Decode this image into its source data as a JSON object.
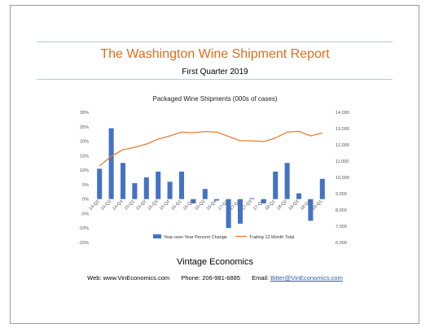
{
  "report": {
    "title": "The Washington Wine Shipment Report",
    "subtitle": "First Quarter 2019"
  },
  "footer": {
    "company": "Vintage Economics",
    "web_label": "Web:",
    "web_value": "www.VinEconomics.com",
    "phone_label": "Phone:",
    "phone_value": "206-981-6885",
    "email_label": "Email:",
    "email_value": "Bitter@VinEconomics.com"
  },
  "chart_data": {
    "type": "bar",
    "title": "Packaged Wine Shipments (000s of cases)",
    "categories": [
      "14-Q2",
      "14-Q3",
      "14-Q4",
      "15-Q1",
      "15-Q2",
      "15-Q3",
      "15-Q4",
      "16-Q1",
      "16-Q2",
      "16-Q3",
      "16-Q4",
      "17-Q1",
      "17-Q2",
      "17-Q3",
      "17-Q4",
      "18-Q1",
      "18-Q2",
      "18-Q3",
      "18-Q4",
      "19-Q1"
    ],
    "series": [
      {
        "name": "Year-over-Year Percent Change",
        "type": "bar",
        "axis": "left",
        "color": "#4472c4",
        "values": [
          10.5,
          24.5,
          12.5,
          5.5,
          7.5,
          9.5,
          6.0,
          9.5,
          -1.5,
          3.5,
          -0.5,
          -10.0,
          -8.5,
          0.3,
          -1.5,
          9.5,
          12.5,
          2.0,
          -7.5,
          7.0
        ]
      },
      {
        "name": "Trailing 12 Month Total",
        "type": "line",
        "axis": "right",
        "color": "#ed7d31",
        "values": [
          10700,
          11300,
          11700,
          11850,
          12050,
          12350,
          12550,
          12780,
          12750,
          12820,
          12780,
          12520,
          12250,
          12250,
          12200,
          12420,
          12780,
          12830,
          12550,
          12730
        ]
      }
    ],
    "y_left": {
      "min": -15,
      "max": 30,
      "step": 5,
      "format": "percent",
      "ticks": [
        "-15%",
        "-10%",
        "-5%",
        "0%",
        "5%",
        "10%",
        "15%",
        "20%",
        "25%",
        "30%"
      ]
    },
    "y_right": {
      "min": 6000,
      "max": 14000,
      "step": 1000,
      "ticks": [
        "6,000",
        "7,000",
        "8,000",
        "9,000",
        "10,000",
        "11,000",
        "12,000",
        "13,000",
        "14,000"
      ]
    },
    "legend": {
      "position": "bottom"
    },
    "grid": false
  }
}
